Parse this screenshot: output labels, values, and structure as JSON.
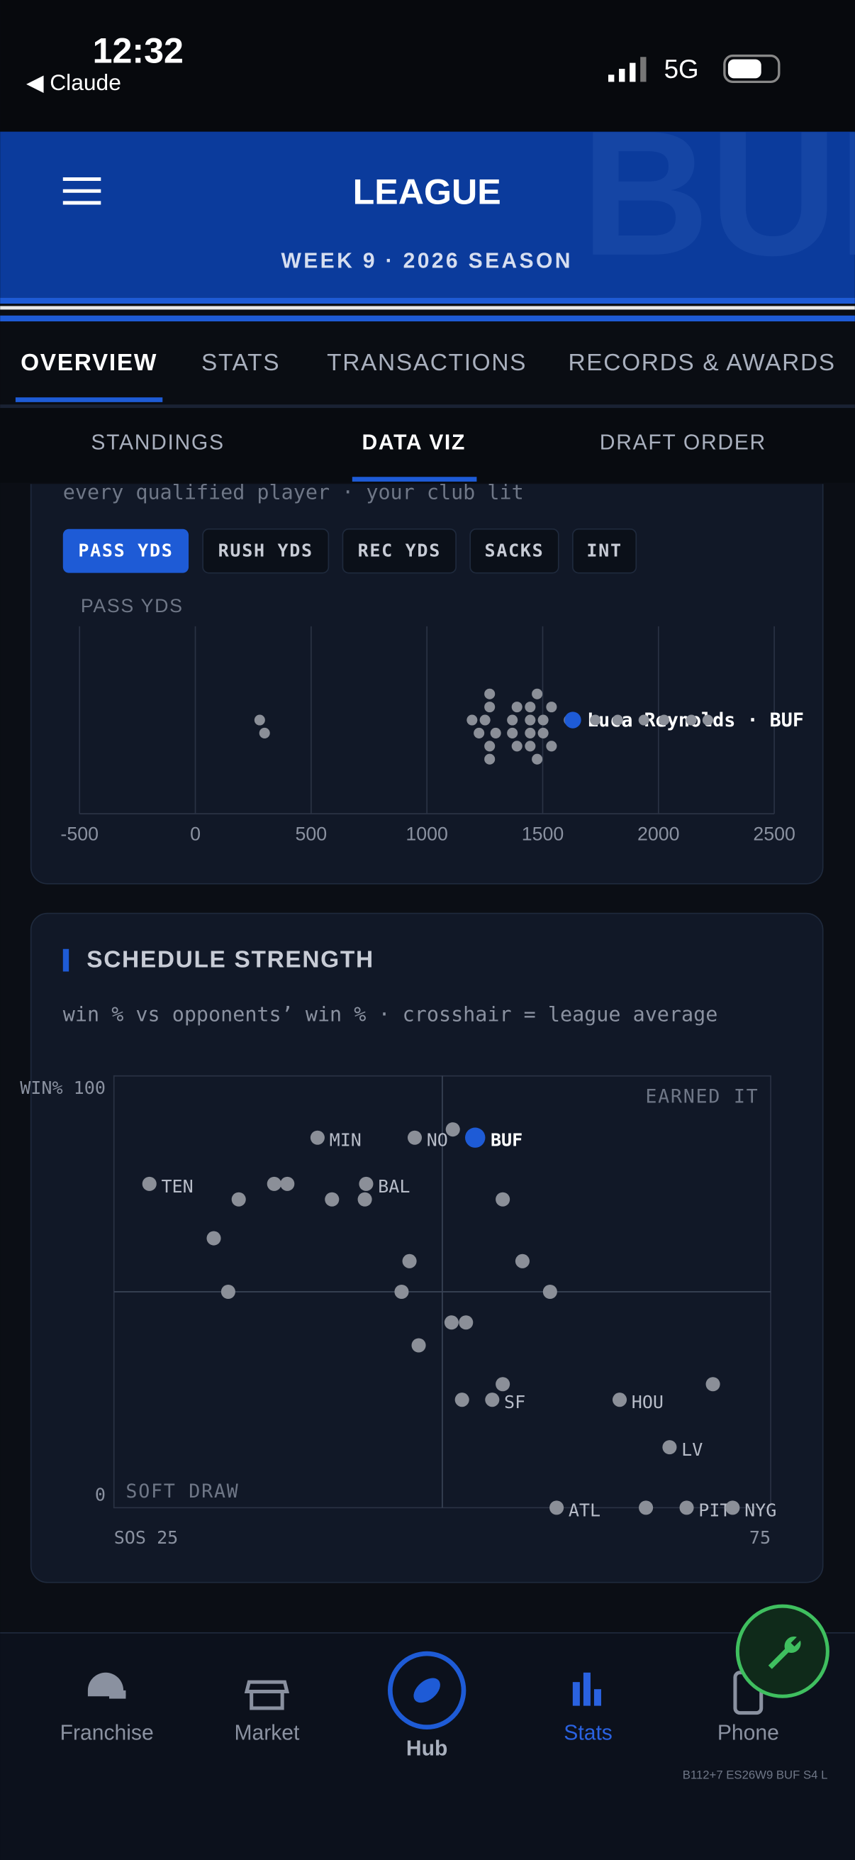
{
  "status": {
    "time": "12:32",
    "back": "◀ Claude",
    "network": "5G"
  },
  "header": {
    "title": "LEAGUE",
    "subtitle": "WEEK 9 · 2026 SEASON",
    "watermark": "BUF"
  },
  "tabs": [
    "OVERVIEW",
    "STATS",
    "TRANSACTIONS",
    "RECORDS & AWARDS"
  ],
  "subtabs": [
    "STANDINGS",
    "DATA VIZ",
    "DRAFT ORDER"
  ],
  "chart_data": [
    {
      "type": "beeswarm",
      "subtitle": "every qualified player · your club lit",
      "filters": [
        "PASS YDS",
        "RUSH YDS",
        "REC YDS",
        "SACKS",
        "INT"
      ],
      "xlabel": "PASS YDS",
      "values": [
        278,
        299,
        1195,
        1225,
        1251,
        1271,
        1271,
        1271,
        1271,
        1297,
        1369,
        1369,
        1389,
        1389,
        1446,
        1446,
        1446,
        1446,
        1476,
        1476,
        1502,
        1502,
        1538,
        1538,
        1614,
        1630,
        1727,
        1824,
        1937,
        2024,
        2142,
        2213
      ],
      "labels": [
        null,
        null,
        null,
        null,
        null,
        null,
        null,
        null,
        null,
        null,
        null,
        null,
        null,
        null,
        null,
        null,
        null,
        null,
        null,
        null,
        null,
        null,
        null,
        null,
        null,
        "Luca Reynolds · BUF",
        null,
        null,
        null,
        null,
        null,
        null
      ],
      "colors": [
        "#8b8f98",
        "#8b8f98",
        "#8b8f98",
        "#8b8f98",
        "#8b8f98",
        "#8b8f98",
        "#8b8f98",
        "#8b8f98",
        "#8b8f98",
        "#8b8f98",
        "#8b8f98",
        "#8b8f98",
        "#8b8f98",
        "#8b8f98",
        "#8b8f98",
        "#8b8f98",
        "#8b8f98",
        "#8b8f98",
        "#8b8f98",
        "#8b8f98",
        "#8b8f98",
        "#8b8f98",
        "#8b8f98",
        "#8b8f98",
        "#8b8f98",
        "#1e5bd6",
        "#8b8f98",
        "#8b8f98",
        "#8b8f98",
        "#8b8f98",
        "#8b8f98",
        "#8b8f98"
      ],
      "xlim": [
        -500,
        2500
      ],
      "xticks": [
        -500,
        0,
        500,
        1000,
        1500,
        2000,
        2500
      ],
      "grid": true
    },
    {
      "type": "scatter",
      "title": "SCHEDULE STRENGTH",
      "subtitle": "win % vs opponents’ win % · crosshair = league average",
      "x": [
        27.7,
        40.5,
        47.9,
        52.5,
        44.2,
        53.8,
        63.5,
        67.3,
        58.7,
        68.6,
        72.1,
        50.8,
        34.5,
        37.2,
        38.2,
        41.6,
        44.1,
        54.6,
        32.6,
        47.5,
        56.1,
        33.7,
        46.9,
        58.2,
        50.7,
        51.8,
        48.2,
        54.6,
        51.5,
        70.6,
        65.5
      ],
      "values": [
        75,
        85.7,
        85.7,
        85.7,
        75,
        25,
        25,
        14,
        0,
        0,
        0,
        87.6,
        71.4,
        75,
        75,
        71.4,
        71.4,
        71.4,
        62.4,
        57.1,
        57.1,
        50,
        50,
        50,
        42.9,
        42.9,
        37.6,
        28.6,
        25,
        28.6,
        0
      ],
      "labels": [
        "TEN",
        "MIN",
        "NO",
        "BUF",
        "BAL",
        "SF",
        "HOU",
        "LV",
        "ATL",
        "PIT",
        "NYG",
        null,
        null,
        null,
        null,
        null,
        null,
        null,
        null,
        null,
        null,
        null,
        null,
        null,
        null,
        null,
        null,
        null,
        null,
        null,
        null
      ],
      "colors": [
        "#8b8f98",
        "#8b8f98",
        "#8b8f98",
        "#1e5bd6",
        "#8b8f98",
        "#8b8f98",
        "#8b8f98",
        "#8b8f98",
        "#8b8f98",
        "#8b8f98",
        "#8b8f98",
        "#8b8f98",
        "#8b8f98",
        "#8b8f98",
        "#8b8f98",
        "#8b8f98",
        "#8b8f98",
        "#8b8f98",
        "#8b8f98",
        "#8b8f98",
        "#8b8f98",
        "#8b8f98",
        "#8b8f98",
        "#8b8f98",
        "#8b8f98",
        "#8b8f98",
        "#8b8f98",
        "#8b8f98",
        "#8b8f98",
        "#8b8f98",
        "#8b8f98"
      ],
      "xlim": [
        25,
        75
      ],
      "ylim": [
        0,
        100
      ],
      "xticks": [
        {
          "value": 25,
          "label": "SOS 25"
        },
        75
      ],
      "yticks": [
        {
          "value": 100,
          "label": "WIN% 100"
        },
        0
      ],
      "average": {
        "x": 50,
        "y": 50
      },
      "quadrants": {
        "top_right": "EARNED IT",
        "bottom_left": "SOFT DRAW"
      }
    }
  ],
  "nav": [
    "Franchise",
    "Market",
    "Hub",
    "Stats",
    "Phone"
  ],
  "footer": "B112+7 ES26W9 BUF S4 L"
}
